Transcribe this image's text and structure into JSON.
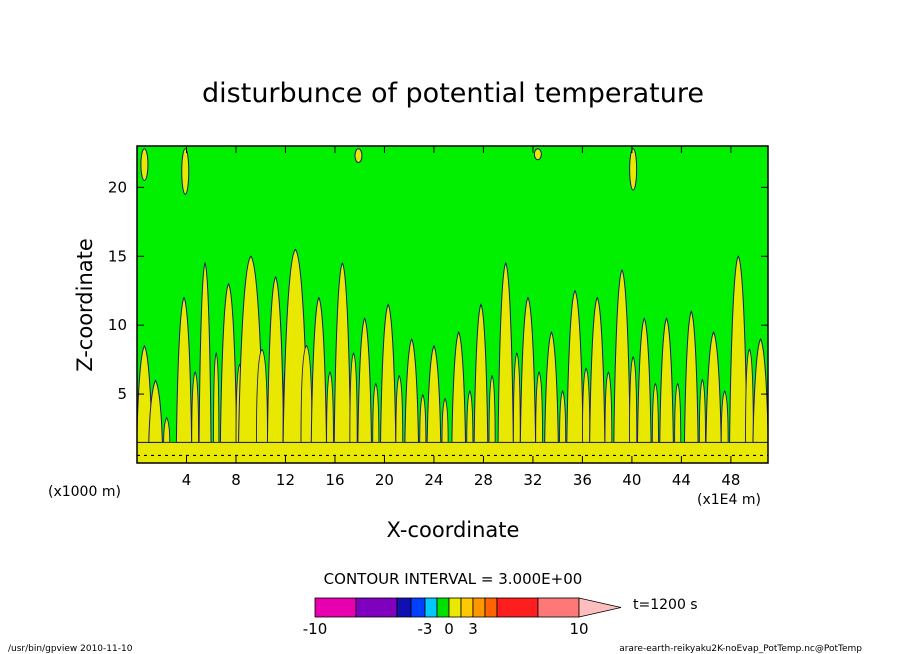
{
  "chart_data": {
    "type": "heatmap",
    "title": "disturbunce of potential temperature",
    "xlabel": "X-coordinate",
    "ylabel": "Z-coordinate",
    "x_unit_left": "(x1000 m)",
    "x_unit_right": "(x1E4 m)",
    "xlim": [
      0,
      51
    ],
    "ylim": [
      0,
      23
    ],
    "x_ticks": [
      4,
      8,
      12,
      16,
      20,
      24,
      28,
      32,
      36,
      40,
      44,
      48
    ],
    "y_ticks": [
      5,
      10,
      15,
      20
    ],
    "contour_interval": "CONTOUR INTERVAL = 3.000E+00",
    "time_label": "t=1200 s",
    "colorbar": {
      "colors": [
        "#e800b0",
        "#8000c0",
        "#1010b0",
        "#0040ff",
        "#00c8ff",
        "#00e000",
        "#e8e800",
        "#ffc800",
        "#ff9600",
        "#ff6400",
        "#ff1e1e",
        "#ff7878",
        "#ffbebe"
      ],
      "tick_labels": [
        "-10",
        "-3",
        "0",
        "3",
        "10"
      ],
      "tick_values": [
        -10,
        -3,
        0,
        3,
        10
      ]
    },
    "plumes": [
      {
        "x": 0.6,
        "top": 8.5,
        "w": 0.28
      },
      {
        "x": 1.5,
        "top": 6.0,
        "w": 0.25
      },
      {
        "x": 3.8,
        "top": 12.0,
        "w": 0.28
      },
      {
        "x": 5.5,
        "top": 14.5,
        "w": 0.22
      },
      {
        "x": 7.4,
        "top": 13.0,
        "w": 0.3
      },
      {
        "x": 9.2,
        "top": 15.0,
        "w": 0.45
      },
      {
        "x": 11.2,
        "top": 13.5,
        "w": 0.3
      },
      {
        "x": 12.8,
        "top": 15.5,
        "w": 0.45
      },
      {
        "x": 14.7,
        "top": 12.0,
        "w": 0.28
      },
      {
        "x": 16.6,
        "top": 14.5,
        "w": 0.3
      },
      {
        "x": 18.4,
        "top": 10.5,
        "w": 0.25
      },
      {
        "x": 20.3,
        "top": 11.5,
        "w": 0.28
      },
      {
        "x": 22.2,
        "top": 9.0,
        "w": 0.25
      },
      {
        "x": 24.0,
        "top": 8.5,
        "w": 0.25
      },
      {
        "x": 26.0,
        "top": 9.5,
        "w": 0.25
      },
      {
        "x": 27.8,
        "top": 11.5,
        "w": 0.25
      },
      {
        "x": 29.8,
        "top": 14.5,
        "w": 0.28
      },
      {
        "x": 31.6,
        "top": 12.0,
        "w": 0.28
      },
      {
        "x": 33.5,
        "top": 9.5,
        "w": 0.25
      },
      {
        "x": 35.4,
        "top": 12.5,
        "w": 0.3
      },
      {
        "x": 37.2,
        "top": 12.0,
        "w": 0.28
      },
      {
        "x": 39.2,
        "top": 14.0,
        "w": 0.3
      },
      {
        "x": 41.0,
        "top": 10.5,
        "w": 0.25
      },
      {
        "x": 42.8,
        "top": 10.5,
        "w": 0.25
      },
      {
        "x": 44.8,
        "top": 11.0,
        "w": 0.25
      },
      {
        "x": 46.6,
        "top": 9.5,
        "w": 0.28
      },
      {
        "x": 48.6,
        "top": 15.0,
        "w": 0.32
      },
      {
        "x": 50.4,
        "top": 9.0,
        "w": 0.28
      }
    ],
    "upper_blobs": [
      {
        "x": 0.6,
        "z0": 20.5,
        "z1": 22.8
      },
      {
        "x": 3.9,
        "z0": 19.5,
        "z1": 22.8
      },
      {
        "x": 17.9,
        "z0": 21.8,
        "z1": 22.8
      },
      {
        "x": 32.4,
        "z0": 22.0,
        "z1": 22.8
      },
      {
        "x": 40.1,
        "z0": 19.8,
        "z1": 22.8
      }
    ],
    "near_surface_band": [
      0.0,
      1.5
    ]
  },
  "footer": {
    "left": "/usr/bin/gpview   2010-11-10",
    "right": "arare-earth-reikyaku2K-noEvap_PotTemp.nc@PotTemp"
  }
}
